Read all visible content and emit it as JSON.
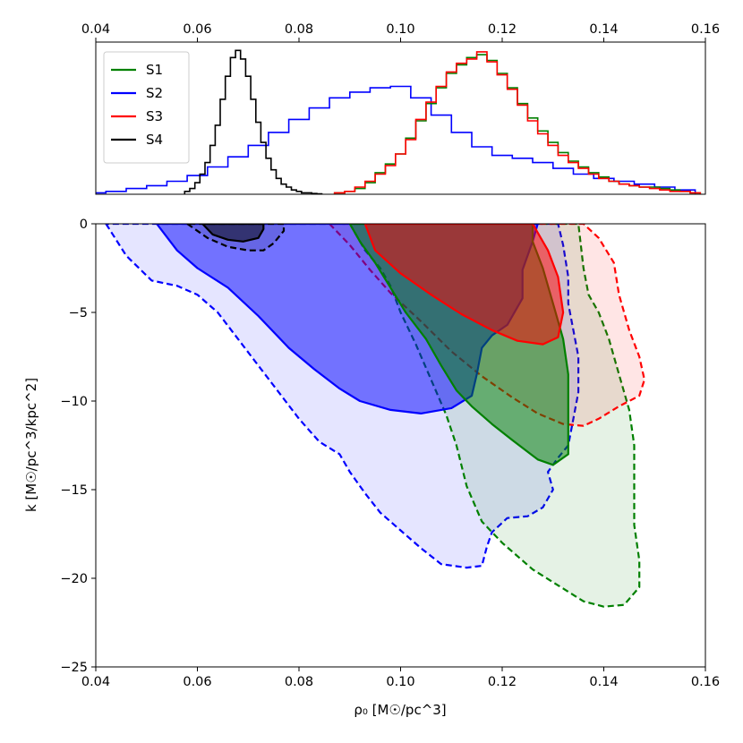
{
  "chart_data": [
    {
      "type": "histogram",
      "xlim": [
        0.04,
        0.16
      ],
      "xticks": [
        "0.04",
        "0.06",
        "0.08",
        "0.10",
        "0.12",
        "0.14",
        "0.16"
      ],
      "xtick_position": "top",
      "yticks_shown": false,
      "legend": {
        "placement": "top-left",
        "entries": [
          "S1",
          "S2",
          "S3",
          "S4"
        ]
      },
      "series": [
        {
          "name": "S1",
          "color": "#008000",
          "x": [
            0.088,
            0.09,
            0.092,
            0.094,
            0.096,
            0.098,
            0.1,
            0.102,
            0.104,
            0.106,
            0.108,
            0.11,
            0.112,
            0.114,
            0.116,
            0.118,
            0.12,
            0.122,
            0.124,
            0.126,
            0.128,
            0.13,
            0.132,
            0.134,
            0.136,
            0.138,
            0.14,
            0.142,
            0.144,
            0.146,
            0.148,
            0.15,
            0.152,
            0.154,
            0.156,
            0.158
          ],
          "values": [
            0.01,
            0.02,
            0.04,
            0.08,
            0.15,
            0.21,
            0.28,
            0.39,
            0.51,
            0.63,
            0.74,
            0.84,
            0.9,
            0.95,
            0.97,
            0.93,
            0.84,
            0.74,
            0.63,
            0.53,
            0.44,
            0.36,
            0.29,
            0.23,
            0.19,
            0.15,
            0.12,
            0.09,
            0.07,
            0.06,
            0.05,
            0.05,
            0.04,
            0.03,
            0.02,
            0.01
          ]
        },
        {
          "name": "S2",
          "color": "#0000ff",
          "x": [
            0.04,
            0.044,
            0.048,
            0.052,
            0.056,
            0.06,
            0.064,
            0.068,
            0.072,
            0.076,
            0.08,
            0.084,
            0.088,
            0.092,
            0.096,
            0.1,
            0.104,
            0.108,
            0.112,
            0.116,
            0.12,
            0.124,
            0.128,
            0.132,
            0.136,
            0.14,
            0.144,
            0.148,
            0.152,
            0.156
          ],
          "values": [
            0.01,
            0.02,
            0.04,
            0.06,
            0.09,
            0.13,
            0.19,
            0.26,
            0.34,
            0.43,
            0.52,
            0.6,
            0.67,
            0.71,
            0.74,
            0.75,
            0.67,
            0.55,
            0.43,
            0.33,
            0.27,
            0.25,
            0.22,
            0.18,
            0.14,
            0.11,
            0.09,
            0.07,
            0.05,
            0.03
          ]
        },
        {
          "name": "S3",
          "color": "#ff0000",
          "x": [
            0.088,
            0.09,
            0.092,
            0.094,
            0.096,
            0.098,
            0.1,
            0.102,
            0.104,
            0.106,
            0.108,
            0.11,
            0.112,
            0.114,
            0.116,
            0.118,
            0.12,
            0.122,
            0.124,
            0.126,
            0.128,
            0.13,
            0.132,
            0.134,
            0.136,
            0.138,
            0.14,
            0.142,
            0.144,
            0.146,
            0.148,
            0.15,
            0.152,
            0.154,
            0.156,
            0.158
          ],
          "values": [
            0.01,
            0.02,
            0.05,
            0.09,
            0.14,
            0.2,
            0.28,
            0.38,
            0.52,
            0.64,
            0.75,
            0.85,
            0.91,
            0.94,
            0.99,
            0.92,
            0.83,
            0.73,
            0.62,
            0.51,
            0.42,
            0.34,
            0.27,
            0.22,
            0.18,
            0.14,
            0.11,
            0.09,
            0.07,
            0.06,
            0.05,
            0.04,
            0.03,
            0.02,
            0.02,
            0.01
          ]
        },
        {
          "name": "S4",
          "color": "#000000",
          "x": [
            0.058,
            0.059,
            0.06,
            0.061,
            0.062,
            0.063,
            0.064,
            0.065,
            0.066,
            0.067,
            0.068,
            0.069,
            0.07,
            0.071,
            0.072,
            0.073,
            0.074,
            0.075,
            0.076,
            0.077,
            0.078,
            0.079,
            0.08,
            0.081,
            0.082,
            0.083,
            0.084
          ],
          "values": [
            0.02,
            0.04,
            0.08,
            0.14,
            0.22,
            0.34,
            0.48,
            0.66,
            0.82,
            0.95,
            1.0,
            0.94,
            0.82,
            0.66,
            0.5,
            0.36,
            0.25,
            0.17,
            0.11,
            0.07,
            0.05,
            0.03,
            0.02,
            0.01,
            0.01,
            0.005,
            0.003
          ]
        }
      ]
    },
    {
      "type": "contour",
      "xlabel": "ρ₀  [M☉/pc^3]",
      "ylabel": "k  [M☉/pc^3/kpc^2]",
      "xlim": [
        0.04,
        0.16
      ],
      "ylim": [
        -25,
        0
      ],
      "xticks": [
        "0.04",
        "0.06",
        "0.08",
        "0.10",
        "0.12",
        "0.14",
        "0.16"
      ],
      "yticks": [
        "0",
        "−5",
        "−10",
        "−15",
        "−20",
        "−25"
      ],
      "series": [
        {
          "name": "S2",
          "color": "#0000ff",
          "level": "outer",
          "line": "dashed",
          "fill_opacity": 0.1,
          "points": [
            [
              0.042,
              0
            ],
            [
              0.046,
              -1.8
            ],
            [
              0.051,
              -3.2
            ],
            [
              0.056,
              -3.5
            ],
            [
              0.06,
              -4
            ],
            [
              0.064,
              -5
            ],
            [
              0.068,
              -6.5
            ],
            [
              0.072,
              -8
            ],
            [
              0.076,
              -9.5
            ],
            [
              0.08,
              -11
            ],
            [
              0.084,
              -12.3
            ],
            [
              0.088,
              -13
            ],
            [
              0.09,
              -14
            ],
            [
              0.093,
              -15.2
            ],
            [
              0.096,
              -16.3
            ],
            [
              0.1,
              -17.3
            ],
            [
              0.104,
              -18.3
            ],
            [
              0.108,
              -19.2
            ],
            [
              0.113,
              -19.4
            ],
            [
              0.116,
              -19.3
            ],
            [
              0.117,
              -18.2
            ],
            [
              0.118,
              -17.4
            ],
            [
              0.121,
              -16.6
            ],
            [
              0.125,
              -16.5
            ],
            [
              0.128,
              -16
            ],
            [
              0.13,
              -15
            ],
            [
              0.129,
              -14
            ],
            [
              0.131,
              -13.2
            ],
            [
              0.133,
              -12.5
            ],
            [
              0.134,
              -11
            ],
            [
              0.135,
              -9.5
            ],
            [
              0.135,
              -7.5
            ],
            [
              0.134,
              -6
            ],
            [
              0.133,
              -4.5
            ],
            [
              0.133,
              -3
            ],
            [
              0.132,
              -1.2
            ],
            [
              0.131,
              0
            ]
          ]
        },
        {
          "name": "S1",
          "color": "#008000",
          "level": "outer",
          "line": "dashed",
          "fill_opacity": 0.1,
          "points": [
            [
              0.09,
              0
            ],
            [
              0.093,
              -1.5
            ],
            [
              0.096,
              -2.5
            ],
            [
              0.098,
              -3.5
            ],
            [
              0.1,
              -5
            ],
            [
              0.103,
              -6.8
            ],
            [
              0.106,
              -8.8
            ],
            [
              0.109,
              -10.8
            ],
            [
              0.111,
              -12.5
            ],
            [
              0.113,
              -14.8
            ],
            [
              0.116,
              -16.8
            ],
            [
              0.12,
              -18
            ],
            [
              0.126,
              -19.5
            ],
            [
              0.131,
              -20.4
            ],
            [
              0.136,
              -21.3
            ],
            [
              0.14,
              -21.6
            ],
            [
              0.144,
              -21.5
            ],
            [
              0.147,
              -20.5
            ],
            [
              0.147,
              -19
            ],
            [
              0.146,
              -17
            ],
            [
              0.146,
              -14.5
            ],
            [
              0.146,
              -12.5
            ],
            [
              0.145,
              -10.5
            ],
            [
              0.143,
              -8.5
            ],
            [
              0.141,
              -6.5
            ],
            [
              0.139,
              -5
            ],
            [
              0.137,
              -4
            ],
            [
              0.136,
              -2.5
            ],
            [
              0.135,
              0
            ]
          ]
        },
        {
          "name": "S3",
          "color": "#ff0000",
          "level": "outer",
          "line": "dashed",
          "fill_opacity": 0.1,
          "points": [
            [
              0.086,
              0
            ],
            [
              0.09,
              -1.2
            ],
            [
              0.094,
              -2.6
            ],
            [
              0.098,
              -3.9
            ],
            [
              0.104,
              -5.5
            ],
            [
              0.11,
              -7.2
            ],
            [
              0.116,
              -8.6
            ],
            [
              0.122,
              -9.8
            ],
            [
              0.127,
              -10.7
            ],
            [
              0.132,
              -11.3
            ],
            [
              0.136,
              -11.4
            ],
            [
              0.139,
              -11
            ],
            [
              0.143,
              -10.3
            ],
            [
              0.147,
              -9.7
            ],
            [
              0.148,
              -8.8
            ],
            [
              0.147,
              -7.5
            ],
            [
              0.145,
              -6
            ],
            [
              0.143,
              -4
            ],
            [
              0.142,
              -2.2
            ],
            [
              0.139,
              -0.8
            ],
            [
              0.136,
              0
            ]
          ]
        },
        {
          "name": "S2",
          "color": "#0000ff",
          "level": "inner",
          "line": "solid",
          "fill_opacity": 0.5,
          "points": [
            [
              0.052,
              0
            ],
            [
              0.056,
              -1.5
            ],
            [
              0.06,
              -2.5
            ],
            [
              0.066,
              -3.6
            ],
            [
              0.072,
              -5.2
            ],
            [
              0.078,
              -7
            ],
            [
              0.083,
              -8.2
            ],
            [
              0.088,
              -9.3
            ],
            [
              0.092,
              -10
            ],
            [
              0.098,
              -10.5
            ],
            [
              0.104,
              -10.7
            ],
            [
              0.11,
              -10.4
            ],
            [
              0.114,
              -9.7
            ],
            [
              0.115,
              -8.5
            ],
            [
              0.116,
              -7
            ],
            [
              0.118,
              -6.3
            ],
            [
              0.121,
              -5.7
            ],
            [
              0.124,
              -4.2
            ],
            [
              0.124,
              -2.6
            ],
            [
              0.126,
              -1
            ],
            [
              0.127,
              0
            ]
          ]
        },
        {
          "name": "S1",
          "color": "#008000",
          "level": "inner",
          "line": "solid",
          "fill_opacity": 0.5,
          "points": [
            [
              0.09,
              0
            ],
            [
              0.092,
              -1
            ],
            [
              0.095,
              -2.2
            ],
            [
              0.098,
              -3.6
            ],
            [
              0.101,
              -5
            ],
            [
              0.105,
              -6.5
            ],
            [
              0.108,
              -8
            ],
            [
              0.111,
              -9.4
            ],
            [
              0.114,
              -10.3
            ],
            [
              0.118,
              -11.3
            ],
            [
              0.122,
              -12.2
            ],
            [
              0.127,
              -13.3
            ],
            [
              0.13,
              -13.6
            ],
            [
              0.133,
              -13
            ],
            [
              0.133,
              -11
            ],
            [
              0.133,
              -8.5
            ],
            [
              0.132,
              -6.5
            ],
            [
              0.13,
              -4.5
            ],
            [
              0.128,
              -2.5
            ],
            [
              0.126,
              -1
            ],
            [
              0.126,
              0
            ]
          ]
        },
        {
          "name": "S3",
          "color": "#ff0000",
          "level": "inner",
          "line": "solid",
          "fill_opacity": 0.5,
          "points": [
            [
              0.093,
              0
            ],
            [
              0.095,
              -1.5
            ],
            [
              0.1,
              -2.8
            ],
            [
              0.106,
              -4
            ],
            [
              0.112,
              -5.1
            ],
            [
              0.118,
              -6
            ],
            [
              0.123,
              -6.6
            ],
            [
              0.128,
              -6.8
            ],
            [
              0.131,
              -6.4
            ],
            [
              0.132,
              -5
            ],
            [
              0.131,
              -3
            ],
            [
              0.129,
              -1.5
            ],
            [
              0.126,
              0
            ]
          ]
        },
        {
          "name": "S4",
          "color": "#000000",
          "level": "outer",
          "line": "dashed",
          "fill_opacity": 0.1,
          "points": [
            [
              0.058,
              0
            ],
            [
              0.062,
              -0.8
            ],
            [
              0.066,
              -1.3
            ],
            [
              0.07,
              -1.5
            ],
            [
              0.073,
              -1.5
            ],
            [
              0.075,
              -1.1
            ],
            [
              0.077,
              -0.4
            ],
            [
              0.077,
              0
            ]
          ]
        },
        {
          "name": "S4",
          "color": "#000000",
          "level": "inner",
          "line": "solid",
          "fill_opacity": 0.5,
          "points": [
            [
              0.061,
              0
            ],
            [
              0.063,
              -0.6
            ],
            [
              0.066,
              -0.9
            ],
            [
              0.069,
              -1
            ],
            [
              0.072,
              -0.8
            ],
            [
              0.073,
              -0.3
            ],
            [
              0.073,
              0
            ]
          ]
        }
      ]
    }
  ]
}
